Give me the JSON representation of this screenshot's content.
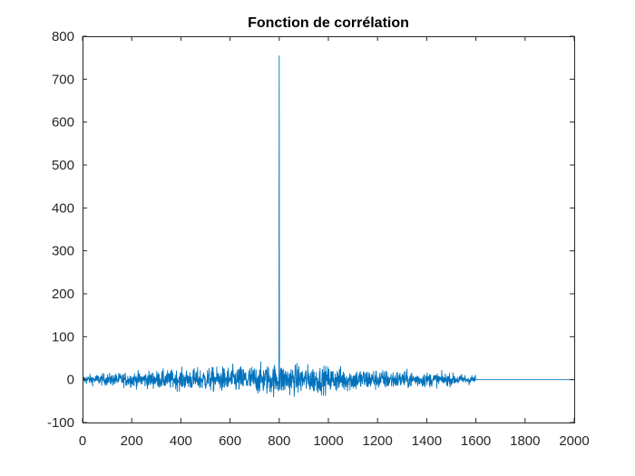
{
  "chart_data": {
    "type": "line",
    "title": "Fonction de corrélation",
    "xlabel": "",
    "ylabel": "",
    "xlim": [
      0,
      2000
    ],
    "ylim": [
      -100,
      800
    ],
    "grid": false,
    "box": true,
    "xticks": [
      0,
      200,
      400,
      600,
      800,
      1000,
      1200,
      1400,
      1600,
      1800,
      2000
    ],
    "yticks": [
      -100,
      0,
      100,
      200,
      300,
      400,
      500,
      600,
      700,
      800
    ],
    "series": [
      {
        "color": "#0072BD",
        "description_points": {
          "x": [
            1,
            100,
            200,
            300,
            400,
            500,
            600,
            700,
            795,
            799,
            800,
            801,
            805,
            900,
            1000,
            1100,
            1200,
            1300,
            1400,
            1500,
            1598,
            1600,
            2000
          ],
          "y": [
            0,
            8,
            -15,
            20,
            -30,
            25,
            -40,
            30,
            -60,
            380,
            755,
            -20,
            30,
            -40,
            35,
            -30,
            28,
            -25,
            20,
            -12,
            5,
            0,
            0
          ]
        },
        "peak": {
          "x": 800,
          "y": 755
        },
        "noise_envelope": {
          "start": 1,
          "end": 1598,
          "center": 800,
          "max_amplitude": 50
        }
      }
    ]
  }
}
